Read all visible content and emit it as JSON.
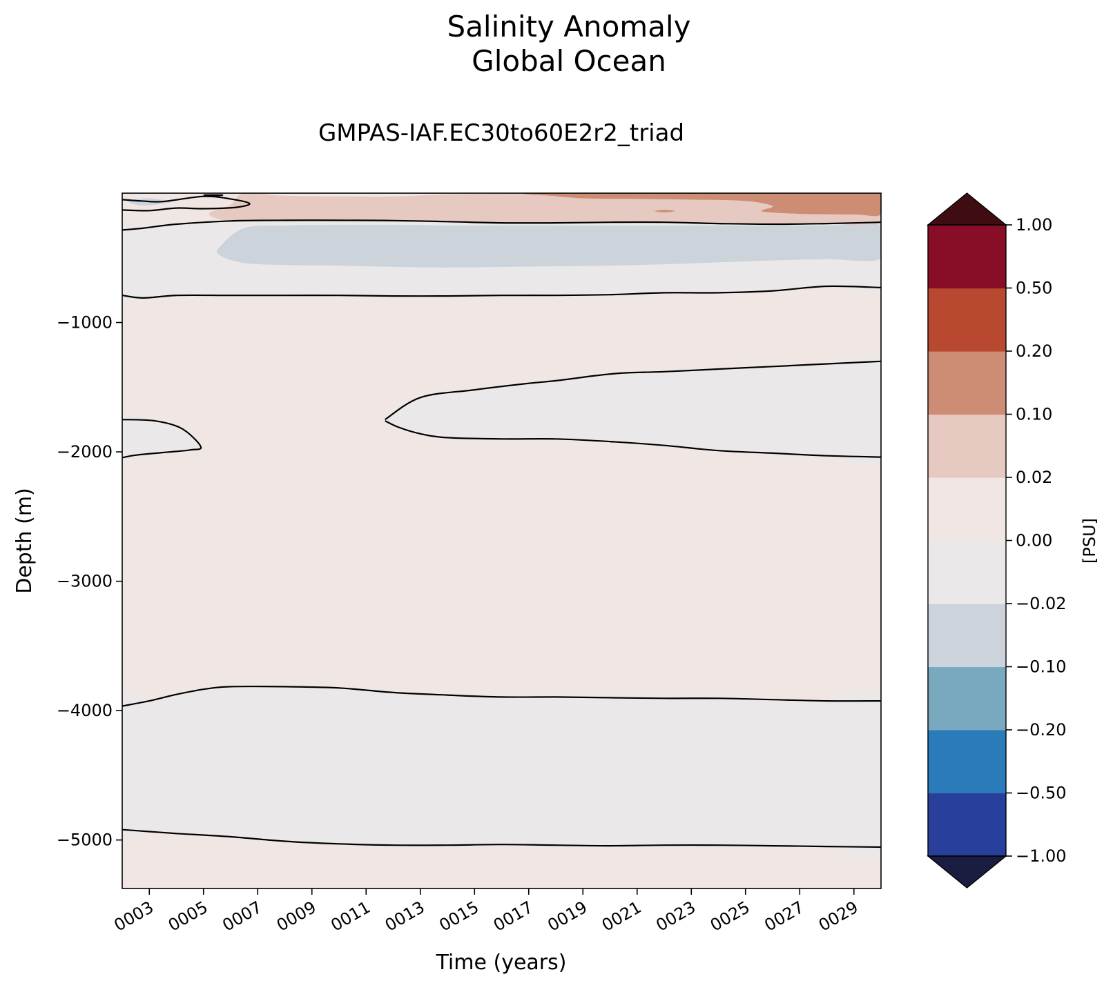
{
  "chart_data": {
    "type": "heatmap",
    "title": "Salinity Anomaly",
    "subtitle": "Global Ocean",
    "run_name": "GMPAS-IAF.EC30to60E2r2_triad",
    "xlabel": "Time (years)",
    "ylabel": "Depth (m)",
    "x_range": [
      2,
      30
    ],
    "xtick_values": [
      3,
      5,
      7,
      9,
      11,
      13,
      15,
      17,
      19,
      21,
      23,
      25,
      27,
      29
    ],
    "xtick_labels": [
      "0003",
      "0005",
      "0007",
      "0009",
      "0011",
      "0013",
      "0015",
      "0017",
      "0019",
      "0021",
      "0023",
      "0025",
      "0027",
      "0029"
    ],
    "y_range": [
      -5375,
      0
    ],
    "ytick_values": [
      -1000,
      -2000,
      -3000,
      -4000,
      -5000
    ],
    "ytick_labels": [
      "−1000",
      "−2000",
      "−3000",
      "−4000",
      "−5000"
    ],
    "colorbar": {
      "label": "[PSU]",
      "extend": "both",
      "levels": [
        -1.0,
        -0.5,
        -0.2,
        -0.1,
        -0.02,
        0.0,
        0.02,
        0.1,
        0.2,
        0.5,
        1.0
      ],
      "tick_labels": [
        "−1.00",
        "−0.50",
        "−0.20",
        "−0.10",
        "−0.02",
        "0.00",
        "0.02",
        "0.10",
        "0.20",
        "0.50",
        "1.00"
      ],
      "colors": [
        "#293f9c",
        "#2a7bba",
        "#78a9be",
        "#ccd3da",
        "#eae8e9",
        "#f0e6e4",
        "#e6c9c1",
        "#cd8c74",
        "#b84830",
        "#870e26"
      ],
      "under_color": "#1a1c40",
      "over_color": "#3f0c12"
    },
    "background_color": "#f0e6e4",
    "regions": [
      {
        "level": "-0.02 to 0.00",
        "color": "#eae8e9",
        "x": [
          2,
          2.8,
          4,
          6,
          8,
          10,
          12,
          14,
          16,
          18,
          20,
          22,
          24,
          26,
          28,
          30,
          30,
          28,
          26,
          24,
          22,
          20,
          18,
          16,
          14,
          12,
          10,
          8,
          6,
          4,
          2.8,
          2
        ],
        "y": [
          -285,
          -270,
          -240,
          -215,
          -210,
          -210,
          -212,
          -220,
          -230,
          -230,
          -225,
          -225,
          -235,
          -240,
          -235,
          -225,
          -730,
          -720,
          -755,
          -770,
          -770,
          -785,
          -790,
          -790,
          -795,
          -795,
          -790,
          -790,
          -790,
          -790,
          -810,
          -790
        ]
      },
      {
        "level": "-0.10 to -0.02",
        "color": "#ccd3da",
        "x": [
          5.6,
          6.5,
          8,
          10,
          12,
          14,
          16,
          18,
          20,
          22,
          24,
          26,
          28,
          30,
          30,
          28,
          26,
          24,
          22,
          20,
          18,
          16,
          14,
          12,
          10,
          8,
          6.5,
          5.6
        ],
        "y": [
          -415,
          -270,
          -250,
          -245,
          -245,
          -250,
          -250,
          -250,
          -250,
          -250,
          -250,
          -250,
          -250,
          -250,
          -505,
          -510,
          -520,
          -535,
          -550,
          -560,
          -565,
          -570,
          -575,
          -570,
          -560,
          -555,
          -540,
          -480
        ]
      },
      {
        "level": "-0.10 to -0.02",
        "color": "#ccd3da",
        "x": [
          2.3,
          3,
          3.8,
          2.8,
          2.3
        ],
        "y": [
          -55,
          -40,
          -70,
          -95,
          -75
        ]
      },
      {
        "level": "0.02 to 0.10",
        "color": "#e6c9c1",
        "x": [
          6.5,
          8,
          10,
          12,
          14,
          16,
          18,
          20,
          22,
          24,
          26,
          28,
          30,
          30,
          28,
          26,
          24,
          22,
          20,
          18,
          16,
          14,
          12,
          10,
          8,
          6,
          5.2,
          6
        ],
        "y": [
          0,
          -20,
          -25,
          -25,
          -10,
          -5,
          -5,
          0,
          0,
          0,
          0,
          0,
          0,
          -225,
          -235,
          -240,
          -235,
          -225,
          -225,
          -230,
          -230,
          -220,
          -212,
          -210,
          -210,
          -215,
          -160,
          -90
        ]
      },
      {
        "level": "0.10 to 0.20",
        "color": "#cd8c74",
        "x": [
          17,
          19,
          21,
          23,
          25,
          27,
          29,
          30,
          30,
          29,
          27,
          25.6,
          26,
          25,
          23,
          21,
          19,
          17.8,
          17
        ],
        "y": [
          0,
          0,
          0,
          0,
          0,
          0,
          0,
          0,
          -165,
          -165,
          -160,
          -140,
          -100,
          -60,
          -50,
          -45,
          -40,
          -20,
          -10
        ]
      },
      {
        "level": "0.10 to 0.20",
        "color": "#cd8c74",
        "x": [
          21.6,
          22,
          22.4,
          22,
          21.6
        ],
        "y": [
          -138,
          -130,
          -138,
          -148,
          -138
        ]
      },
      {
        "level": "-0.02 to 0.00",
        "color": "#eae8e9",
        "x": [
          11.7,
          13,
          15,
          17,
          18,
          19.5,
          20.5,
          22,
          24,
          26,
          28,
          30,
          30,
          28,
          26,
          24,
          22,
          20,
          18,
          16,
          14,
          13,
          12.2,
          11.7
        ],
        "y": [
          -1750,
          -1580,
          -1520,
          -1470,
          -1450,
          -1410,
          -1390,
          -1380,
          -1360,
          -1340,
          -1320,
          -1300,
          -2040,
          -2030,
          -2010,
          -1990,
          -1950,
          -1920,
          -1900,
          -1900,
          -1890,
          -1860,
          -1810,
          -1760
        ]
      },
      {
        "level": "-0.02 to 0.00",
        "color": "#eae8e9",
        "x": [
          2,
          3.2,
          4.2,
          4.9,
          4.5,
          3.5,
          2.5,
          2
        ],
        "y": [
          -1750,
          -1760,
          -1820,
          -1960,
          -1985,
          -2005,
          -2025,
          -2045
        ]
      },
      {
        "level": "-0.02 to 0.00",
        "color": "#eae8e9",
        "x": [
          2,
          3,
          4,
          5,
          6,
          8,
          10,
          12,
          14,
          16,
          18,
          20,
          22,
          24,
          26,
          28,
          30,
          30,
          28,
          26,
          24,
          22,
          20,
          18,
          16,
          14,
          12,
          10,
          8,
          6,
          4,
          3,
          2
        ],
        "y": [
          -3965,
          -3925,
          -3875,
          -3835,
          -3815,
          -3815,
          -3825,
          -3860,
          -3880,
          -3895,
          -3895,
          -3900,
          -3905,
          -3905,
          -3915,
          -3925,
          -3925,
          -5055,
          -5050,
          -5045,
          -5040,
          -5040,
          -5045,
          -5040,
          -5035,
          -5040,
          -5040,
          -5030,
          -5010,
          -4975,
          -4950,
          -4935,
          -4920
        ]
      }
    ],
    "contour_lines": [
      {
        "level": "0.00",
        "x": [
          2,
          2.8,
          4,
          6,
          8,
          10,
          12,
          14,
          16,
          18,
          20,
          22,
          24,
          26,
          28,
          30
        ],
        "y": [
          -285,
          -270,
          -240,
          -215,
          -210,
          -210,
          -212,
          -220,
          -230,
          -230,
          -225,
          -225,
          -235,
          -240,
          -235,
          -225
        ]
      },
      {
        "level": "0.00",
        "x": [
          2,
          2.8,
          4,
          6,
          8,
          10,
          12,
          14,
          16,
          18,
          20,
          22,
          24,
          26,
          28,
          30
        ],
        "y": [
          -790,
          -810,
          -790,
          -790,
          -790,
          -790,
          -795,
          -795,
          -790,
          -790,
          -785,
          -770,
          -770,
          -755,
          -720,
          -730
        ]
      },
      {
        "level": "0.00",
        "x": [
          2,
          2.7,
          3.5,
          5,
          6,
          6.7,
          6.2,
          5,
          4,
          3,
          2
        ],
        "y": [
          -50,
          -60,
          -65,
          -25,
          -45,
          -80,
          -110,
          -120,
          -115,
          -135,
          -130
        ]
      },
      {
        "level": "0.00",
        "x": [
          5,
          5.7,
          5.2
        ],
        "y": [
          -15,
          -15,
          -25
        ]
      },
      {
        "level": "0.00",
        "x": [
          11.7,
          13,
          15,
          17,
          18,
          19.5,
          20.5,
          22,
          24,
          26,
          28,
          30
        ],
        "y": [
          -1750,
          -1580,
          -1520,
          -1470,
          -1450,
          -1410,
          -1390,
          -1380,
          -1360,
          -1340,
          -1320,
          -1300
        ]
      },
      {
        "level": "0.00",
        "x": [
          11.7,
          12.2,
          13,
          14,
          16,
          18,
          20,
          22,
          24,
          26,
          28,
          30
        ],
        "y": [
          -1760,
          -1810,
          -1860,
          -1890,
          -1900,
          -1900,
          -1920,
          -1950,
          -1990,
          -2010,
          -2030,
          -2040
        ]
      },
      {
        "level": "0.00",
        "x": [
          2,
          3.2,
          4.2,
          4.9,
          4.5,
          3.5,
          2.5,
          2
        ],
        "y": [
          -1750,
          -1760,
          -1820,
          -1960,
          -1985,
          -2005,
          -2025,
          -2045
        ]
      },
      {
        "level": "0.00",
        "x": [
          2,
          3,
          4,
          5,
          6,
          8,
          10,
          12,
          14,
          16,
          18,
          20,
          22,
          24,
          26,
          28,
          30
        ],
        "y": [
          -3965,
          -3925,
          -3875,
          -3835,
          -3815,
          -3815,
          -3825,
          -3860,
          -3880,
          -3895,
          -3895,
          -3900,
          -3905,
          -3905,
          -3915,
          -3925,
          -3925
        ]
      },
      {
        "level": "0.00",
        "x": [
          2,
          3,
          4,
          6,
          8,
          10,
          12,
          14,
          16,
          18,
          20,
          22,
          24,
          26,
          28,
          30
        ],
        "y": [
          -4920,
          -4935,
          -4950,
          -4975,
          -5010,
          -5030,
          -5040,
          -5040,
          -5035,
          -5040,
          -5045,
          -5040,
          -5040,
          -5045,
          -5050,
          -5055
        ]
      }
    ]
  }
}
